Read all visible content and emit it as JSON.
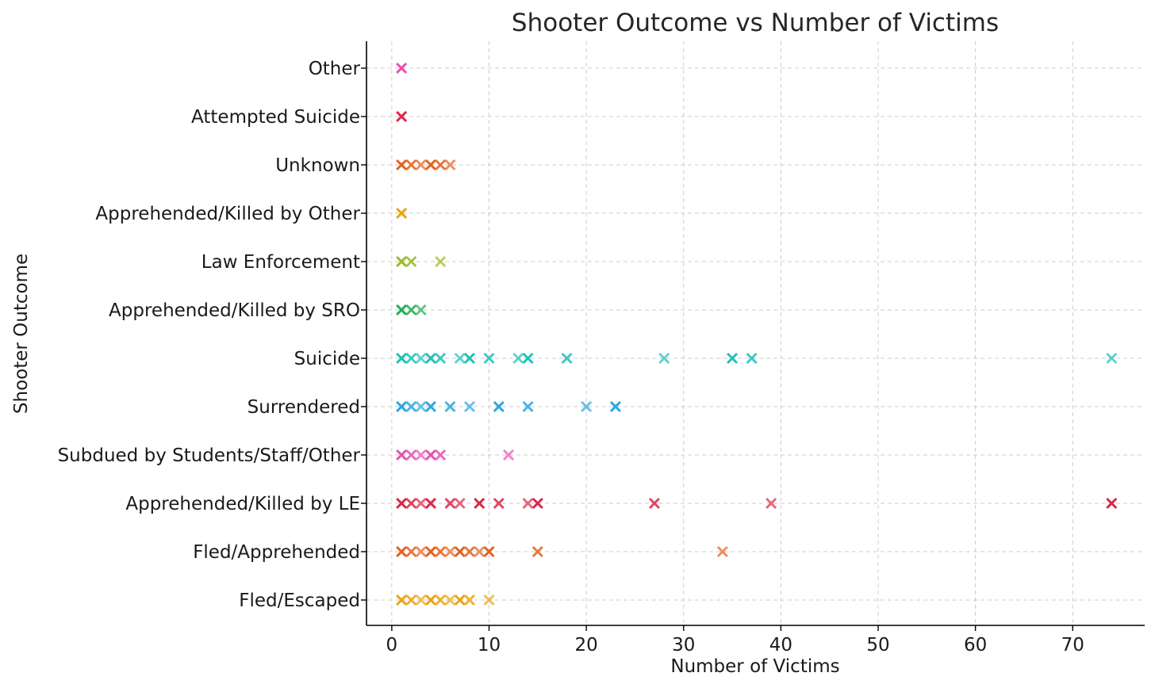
{
  "chart_data": {
    "type": "scatter",
    "title": "Shooter Outcome vs Number of Victims",
    "xlabel": "Number of Victims",
    "ylabel": "Shooter Outcome",
    "xlim": [
      -2.6,
      77.4
    ],
    "xticks": [
      0,
      10,
      20,
      30,
      40,
      50,
      60,
      70
    ],
    "grid": true,
    "marker": "x",
    "categories": [
      "Fled/Escaped",
      "Fled/Apprehended",
      "Apprehended/Killed by LE",
      "Subdued by Students/Staff/Other",
      "Surrendered",
      "Suicide",
      "Apprehended/Killed by SRO",
      "Law Enforcement",
      "Apprehended/Killed by Other",
      "Unknown",
      "Attempted Suicide",
      "Other"
    ],
    "series": [
      {
        "category": "Fled/Escaped",
        "color": "#EBA40F",
        "x": [
          1,
          2,
          3,
          4,
          5,
          6,
          7,
          8,
          10
        ]
      },
      {
        "category": "Fled/Apprehended",
        "color": "#E2621B",
        "x": [
          1,
          2,
          3,
          4,
          5,
          6,
          7,
          8,
          9,
          10,
          15,
          34
        ]
      },
      {
        "category": "Apprehended/Killed by LE",
        "color": "#DC2747",
        "x": [
          1,
          2,
          3,
          4,
          6,
          7,
          9,
          11,
          14,
          15,
          27,
          39,
          74
        ]
      },
      {
        "category": "Subdued by Students/Staff/Other",
        "color": "#E651B2",
        "x": [
          1,
          2,
          3,
          4,
          5,
          12
        ]
      },
      {
        "category": "Surrendered",
        "color": "#2AA7E0",
        "x": [
          1,
          2,
          3,
          4,
          6,
          8,
          11,
          14,
          20,
          23
        ]
      },
      {
        "category": "Suicide",
        "color": "#1EC1B9",
        "x": [
          1,
          2,
          3,
          4,
          5,
          7,
          8,
          10,
          13,
          14,
          18,
          28,
          35,
          37,
          74
        ]
      },
      {
        "category": "Apprehended/Killed by SRO",
        "color": "#1DB050",
        "x": [
          1,
          2,
          3
        ]
      },
      {
        "category": "Law Enforcement",
        "color": "#99BC1E",
        "x": [
          1,
          2,
          5
        ]
      },
      {
        "category": "Apprehended/Killed by Other",
        "color": "#EBA40F",
        "x": [
          1
        ]
      },
      {
        "category": "Unknown",
        "color": "#E2621B",
        "x": [
          1,
          2,
          3,
          4,
          5,
          6
        ]
      },
      {
        "category": "Attempted Suicide",
        "color": "#DC2747",
        "x": [
          1
        ]
      },
      {
        "category": "Other",
        "color": "#E651B2",
        "x": [
          1
        ]
      }
    ]
  }
}
